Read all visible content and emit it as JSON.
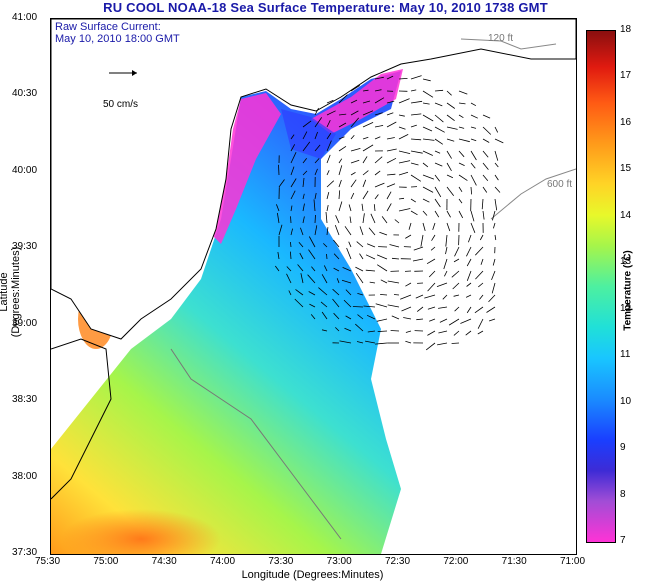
{
  "title": "RU COOL  NOAA-18  Sea Surface Temperature:  May 10, 2010 1738 GMT",
  "overlay": {
    "line1": "Raw Surface Current:",
    "line2": "May 10, 2010 18:00 GMT",
    "scale_label": "50 cm/s"
  },
  "isobaths": {
    "shallow": "120 ft",
    "deep": "600 ft"
  },
  "axes": {
    "xlabel": "Longitude (Degrees:Minutes)",
    "ylabel": "Latitude (Degrees:Minutes)",
    "x_ticks": [
      "75:30",
      "75:00",
      "74:30",
      "74:00",
      "73:30",
      "73:00",
      "72:30",
      "72:00",
      "71:30",
      "71:00"
    ],
    "y_ticks": [
      "41:00",
      "40:30",
      "40:00",
      "39:30",
      "39:00",
      "38:30",
      "38:00",
      "37:30"
    ]
  },
  "colorbar": {
    "title": "Temperature (°C)",
    "ticks": [
      "18",
      "17",
      "16",
      "15",
      "14",
      "13",
      "12",
      "11",
      "10",
      "9",
      "8",
      "7"
    ]
  },
  "colors": {
    "title": "#1a1aa8",
    "land": "#ffffff",
    "coast": "#000000"
  }
}
